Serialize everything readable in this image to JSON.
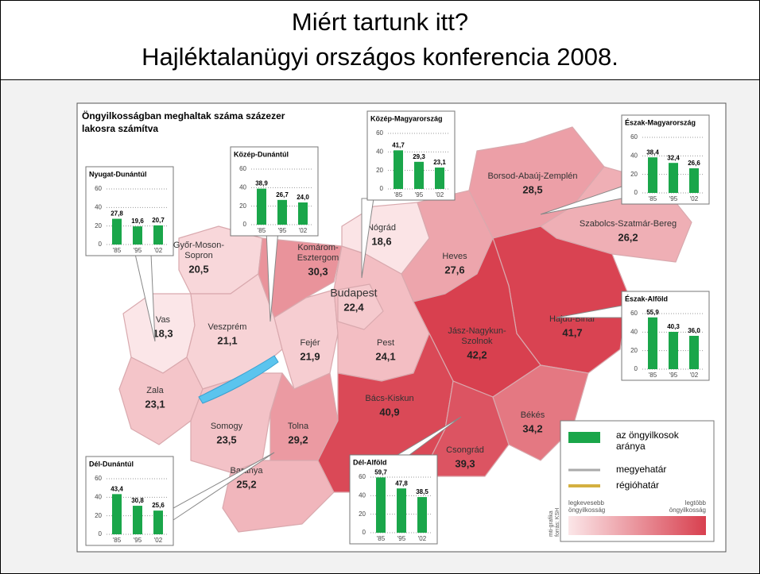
{
  "header": {
    "title_lines": [
      "Miért tartunk itt?",
      "Hajléktalanügyi országos konferencia 2008."
    ]
  },
  "map": {
    "title_lines": [
      "Öngyilkosságban meghaltak száma százezer",
      "lakosra számítva"
    ],
    "counties": [
      {
        "name": [
          "Győr-Moson-",
          "Sopron"
        ],
        "value": 20.5,
        "value_label": "20,5"
      },
      {
        "name": [
          "Vas"
        ],
        "value": 18.3,
        "value_label": "18,3"
      },
      {
        "name": [
          "Zala"
        ],
        "value": 23.1,
        "value_label": "23,1"
      },
      {
        "name": [
          "Veszprém"
        ],
        "value": 21.1,
        "value_label": "21,1"
      },
      {
        "name": [
          "Komárom-",
          "Esztergom"
        ],
        "value": 30.3,
        "value_label": "30,3"
      },
      {
        "name": [
          "Fejér"
        ],
        "value": 21.9,
        "value_label": "21,9"
      },
      {
        "name": [
          "Somogy"
        ],
        "value": 23.5,
        "value_label": "23,5"
      },
      {
        "name": [
          "Tolna"
        ],
        "value": 29.2,
        "value_label": "29,2"
      },
      {
        "name": [
          "Baranya"
        ],
        "value": 25.2,
        "value_label": "25,2"
      },
      {
        "name": [
          "Pest"
        ],
        "value": 24.1,
        "value_label": "24,1"
      },
      {
        "name": [
          "Budapest"
        ],
        "value": 22.4,
        "value_label": "22,4"
      },
      {
        "name": [
          "Nógrád"
        ],
        "value": 18.6,
        "value_label": "18,6"
      },
      {
        "name": [
          "Heves"
        ],
        "value": 27.6,
        "value_label": "27,6"
      },
      {
        "name": [
          "Borsod-Abaúj-Zemplén"
        ],
        "value": 28.5,
        "value_label": "28,5"
      },
      {
        "name": [
          "Szabolcs-Szatmár-Bereg"
        ],
        "value": 26.2,
        "value_label": "26,2"
      },
      {
        "name": [
          "Hajdú-Bihar"
        ],
        "value": 41.7,
        "value_label": "41,7"
      },
      {
        "name": [
          "Jász-Nagykun-",
          "Szolnok"
        ],
        "value": 42.2,
        "value_label": "42,2"
      },
      {
        "name": [
          "Bács-Kiskun"
        ],
        "value": 40.9,
        "value_label": "40,9"
      },
      {
        "name": [
          "Csongrád"
        ],
        "value": 39.3,
        "value_label": "39,3"
      },
      {
        "name": [
          "Békés"
        ],
        "value": 34.2,
        "value_label": "34,2"
      }
    ],
    "region_charts": {
      "type": "bar",
      "categories": [
        "'85",
        "'95",
        "'02"
      ],
      "color": "#1aa64a",
      "ylim": [
        0,
        60
      ],
      "yticks": [
        0,
        20,
        40,
        60
      ],
      "regions": [
        {
          "name": "Nyugat-Dunántúl",
          "values": [
            27.8,
            19.6,
            20.7
          ],
          "value_labels": [
            "27,8",
            "19,6",
            "20,7"
          ]
        },
        {
          "name": "Közép-Dunántúl",
          "values": [
            38.9,
            26.7,
            24.0
          ],
          "value_labels": [
            "38,9",
            "26,7",
            "24,0"
          ]
        },
        {
          "name": "Közép-Magyarország",
          "values": [
            41.7,
            29.3,
            23.1
          ],
          "value_labels": [
            "41,7",
            "29,3",
            "23,1"
          ]
        },
        {
          "name": "Észak-Magyarország",
          "values": [
            38.4,
            32.4,
            26.6
          ],
          "value_labels": [
            "38,4",
            "32,4",
            "26,6"
          ]
        },
        {
          "name": "Észak-Alföld",
          "values": [
            55.9,
            40.3,
            36.0
          ],
          "value_labels": [
            "55,9",
            "40,3",
            "36,0"
          ]
        },
        {
          "name": "Dél-Dunántúl",
          "values": [
            43.4,
            30.8,
            25.6
          ],
          "value_labels": [
            "43,4",
            "30,8",
            "25,6"
          ]
        },
        {
          "name": "Dél-Alföld",
          "values": [
            59.7,
            47.8,
            38.5
          ],
          "value_labels": [
            "59,7",
            "47,8",
            "38,5"
          ]
        }
      ]
    },
    "legend": {
      "bar": [
        "az öngyilkosok",
        "aránya"
      ],
      "county_border": "megyehatár",
      "region_border": "régióhatár",
      "low": [
        "legkevesebb",
        "öngyilkosság"
      ],
      "high": [
        "legtöbb",
        "öngyilkosság"
      ]
    },
    "source": [
      "mti-grafika",
      "forrás: KSH"
    ]
  }
}
